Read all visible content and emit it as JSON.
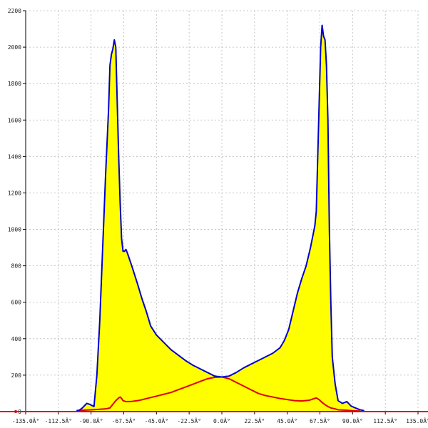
{
  "chart_data": {
    "type": "area",
    "title": "",
    "xlabel": "",
    "ylabel": "",
    "xlim": [
      -135,
      135
    ],
    "ylim": [
      0,
      2200
    ],
    "grid": true,
    "x_tick_labels": [
      "-135.0Â°",
      "-112.5Â°",
      "-90.0Â°",
      "-67.5Â°",
      "-45.0Â°",
      "-22.5Â°",
      "0.0Â°",
      "22.5Â°",
      "45.0Â°",
      "67.5Â°",
      "90.0Â°",
      "112.5Â°",
      "135.0Â°"
    ],
    "x_tick_values": [
      -135,
      -112.5,
      -90,
      -67.5,
      -45,
      -22.5,
      0,
      22.5,
      45,
      67.5,
      90,
      112.5,
      135
    ],
    "y_tick_values": [
      0,
      200,
      400,
      600,
      800,
      1000,
      1200,
      1400,
      1600,
      1800,
      2000,
      2200
    ],
    "y_tick_labels": [
      "0",
      "200",
      "400",
      "600",
      "800",
      "1000",
      "1200",
      "1400",
      "1600",
      "1800",
      "2000",
      "2200"
    ],
    "colors": {
      "fill": "#ffff00",
      "upper_line": "#0000cc",
      "lower_line": "#e00000",
      "zero_line": "#e00000"
    },
    "series": [
      {
        "points": [
          [
            -100,
            5
          ],
          [
            -98,
            8
          ],
          [
            -96,
            20
          ],
          [
            -93,
            45
          ],
          [
            -91,
            40
          ],
          [
            -88,
            28
          ],
          [
            -86,
            200
          ],
          [
            -84,
            500
          ],
          [
            -82,
            900
          ],
          [
            -80,
            1300
          ],
          [
            -78,
            1650
          ],
          [
            -77,
            1900
          ],
          [
            -76,
            1960
          ],
          [
            -75,
            1990
          ],
          [
            -74,
            2040
          ],
          [
            -73,
            2000
          ],
          [
            -72,
            1700
          ],
          [
            -71,
            1400
          ],
          [
            -70,
            1150
          ],
          [
            -69,
            950
          ],
          [
            -68,
            880
          ],
          [
            -67,
            880
          ],
          [
            -66,
            890
          ],
          [
            -65,
            870
          ],
          [
            -62,
            800
          ],
          [
            -58,
            700
          ],
          [
            -55,
            620
          ],
          [
            -52,
            550
          ],
          [
            -49,
            470
          ],
          [
            -45,
            420
          ],
          [
            -40,
            380
          ],
          [
            -35,
            340
          ],
          [
            -30,
            310
          ],
          [
            -25,
            280
          ],
          [
            -20,
            255
          ],
          [
            -15,
            235
          ],
          [
            -10,
            215
          ],
          [
            -5,
            195
          ],
          [
            0,
            190
          ],
          [
            5,
            195
          ],
          [
            10,
            215
          ],
          [
            15,
            240
          ],
          [
            20,
            260
          ],
          [
            25,
            280
          ],
          [
            30,
            300
          ],
          [
            35,
            320
          ],
          [
            40,
            350
          ],
          [
            43,
            390
          ],
          [
            46,
            450
          ],
          [
            49,
            550
          ],
          [
            52,
            650
          ],
          [
            55,
            730
          ],
          [
            58,
            800
          ],
          [
            61,
            900
          ],
          [
            63,
            980
          ],
          [
            64,
            1020
          ],
          [
            65,
            1100
          ],
          [
            66,
            1400
          ],
          [
            67,
            1700
          ],
          [
            68,
            2000
          ],
          [
            69,
            2120
          ],
          [
            70,
            2060
          ],
          [
            71,
            2040
          ],
          [
            72,
            1900
          ],
          [
            73,
            1600
          ],
          [
            74,
            1000
          ],
          [
            75,
            600
          ],
          [
            76,
            300
          ],
          [
            78,
            150
          ],
          [
            80,
            60
          ],
          [
            83,
            45
          ],
          [
            86,
            55
          ],
          [
            89,
            30
          ],
          [
            92,
            20
          ],
          [
            95,
            10
          ],
          [
            98,
            5
          ]
        ]
      },
      {
        "points": [
          [
            -100,
            5
          ],
          [
            -95,
            8
          ],
          [
            -90,
            10
          ],
          [
            -85,
            12
          ],
          [
            -80,
            15
          ],
          [
            -77,
            20
          ],
          [
            -75,
            40
          ],
          [
            -73,
            60
          ],
          [
            -71,
            75
          ],
          [
            -70,
            80
          ],
          [
            -69,
            72
          ],
          [
            -68,
            60
          ],
          [
            -66,
            55
          ],
          [
            -62,
            56
          ],
          [
            -58,
            60
          ],
          [
            -55,
            65
          ],
          [
            -50,
            75
          ],
          [
            -45,
            85
          ],
          [
            -40,
            95
          ],
          [
            -35,
            105
          ],
          [
            -30,
            120
          ],
          [
            -25,
            135
          ],
          [
            -20,
            150
          ],
          [
            -15,
            165
          ],
          [
            -10,
            180
          ],
          [
            -5,
            188
          ],
          [
            0,
            190
          ],
          [
            5,
            180
          ],
          [
            10,
            160
          ],
          [
            15,
            140
          ],
          [
            20,
            120
          ],
          [
            25,
            100
          ],
          [
            30,
            88
          ],
          [
            35,
            80
          ],
          [
            40,
            72
          ],
          [
            45,
            66
          ],
          [
            50,
            60
          ],
          [
            55,
            58
          ],
          [
            60,
            62
          ],
          [
            63,
            70
          ],
          [
            65,
            75
          ],
          [
            67,
            65
          ],
          [
            69,
            50
          ],
          [
            71,
            38
          ],
          [
            73,
            28
          ],
          [
            75,
            20
          ],
          [
            78,
            15
          ],
          [
            80,
            10
          ],
          [
            85,
            8
          ],
          [
            90,
            5
          ],
          [
            95,
            3
          ]
        ]
      }
    ]
  }
}
